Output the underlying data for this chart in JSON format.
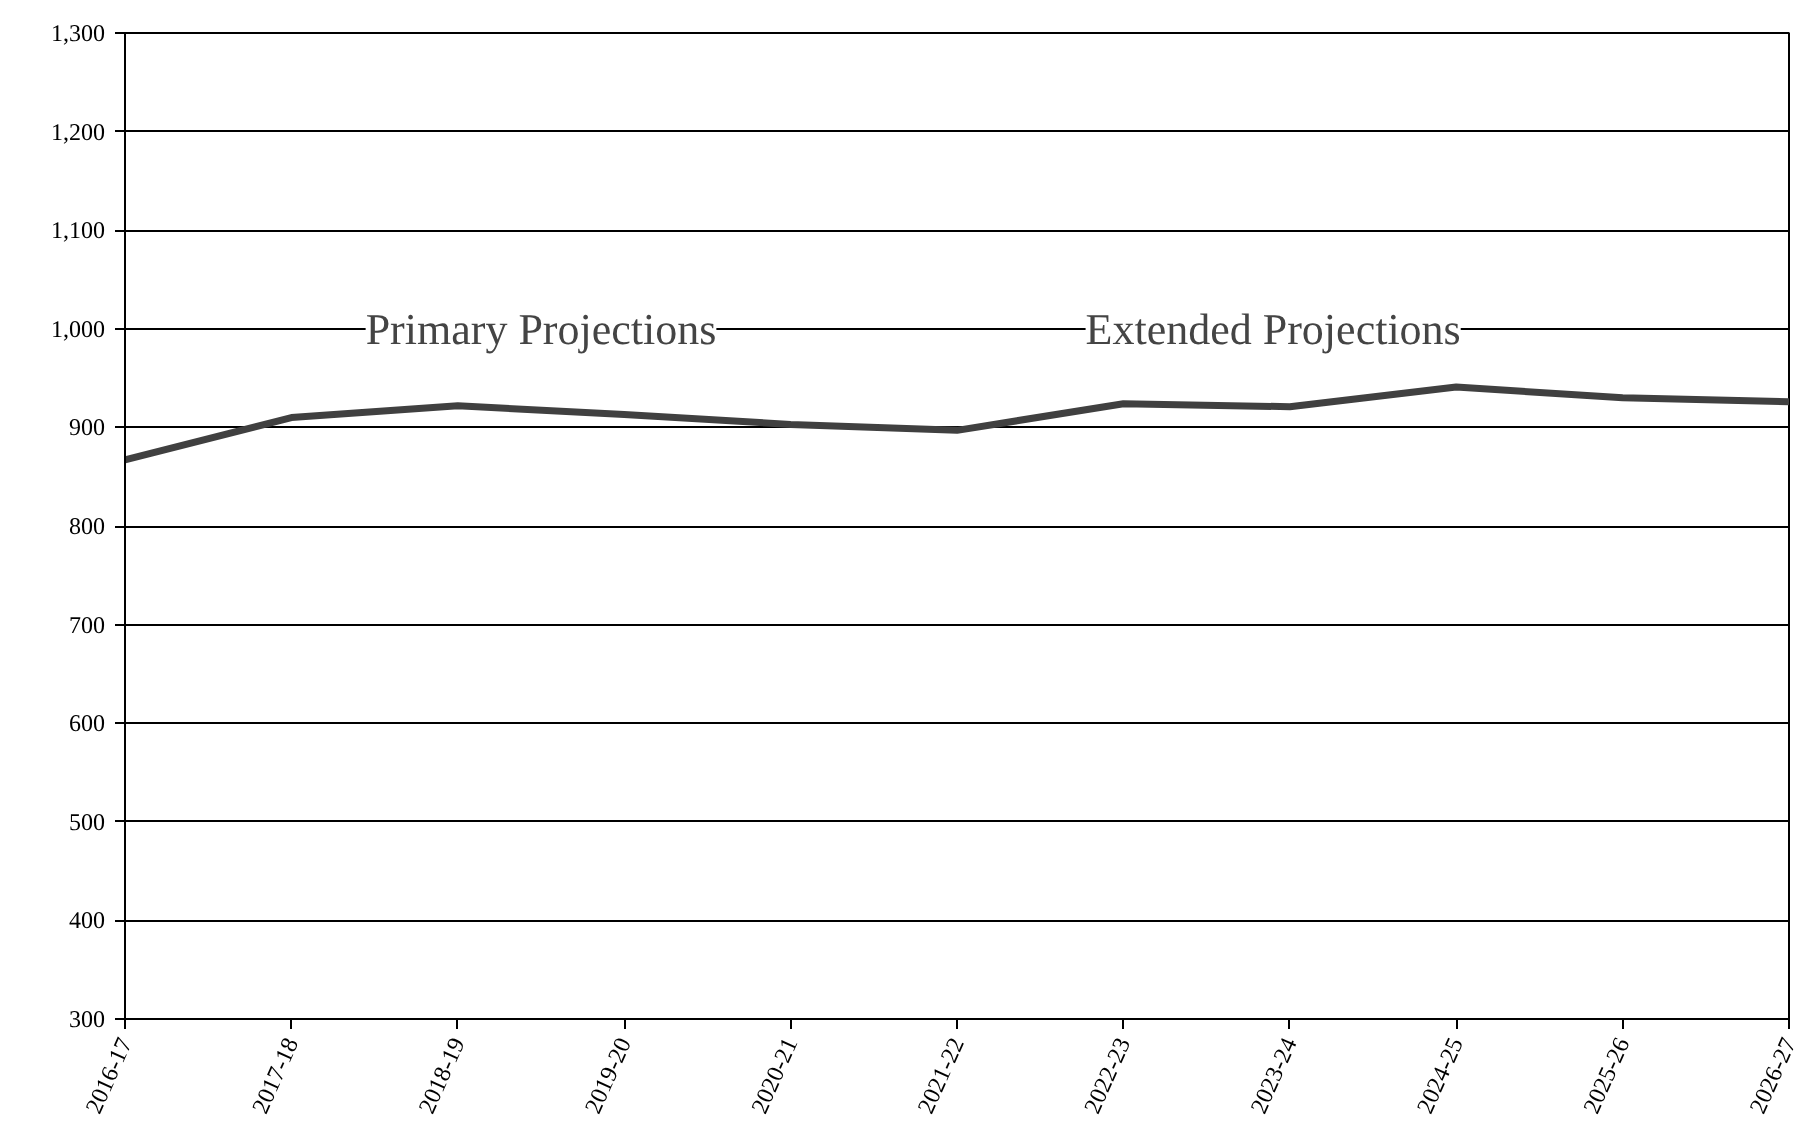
{
  "chart_data": {
    "type": "line",
    "categories": [
      "2016-17",
      "2017-18",
      "2018-19",
      "2019-20",
      "2020-21",
      "2021-22",
      "2022-23",
      "2023-24",
      "2024-25",
      "2025-26",
      "2026-27"
    ],
    "series": [
      {
        "color": "#404040",
        "values": [
          867,
          910,
          922,
          913,
          903,
          897,
          924,
          921,
          941,
          930,
          926
        ]
      }
    ],
    "ylim": [
      300,
      1300
    ],
    "yticks": [
      300,
      400,
      500,
      600,
      700,
      800,
      900,
      {
        "value": 1000,
        "label": "1,000"
      },
      {
        "value": 1100,
        "label": "1,100"
      },
      {
        "value": 1200,
        "label": "1,200"
      },
      {
        "value": 1300,
        "label": "1,300"
      }
    ],
    "grid": "y",
    "marker": "none",
    "line_style": "solid",
    "annotations": [
      "Primary Projections",
      "Extended Projections"
    ]
  }
}
